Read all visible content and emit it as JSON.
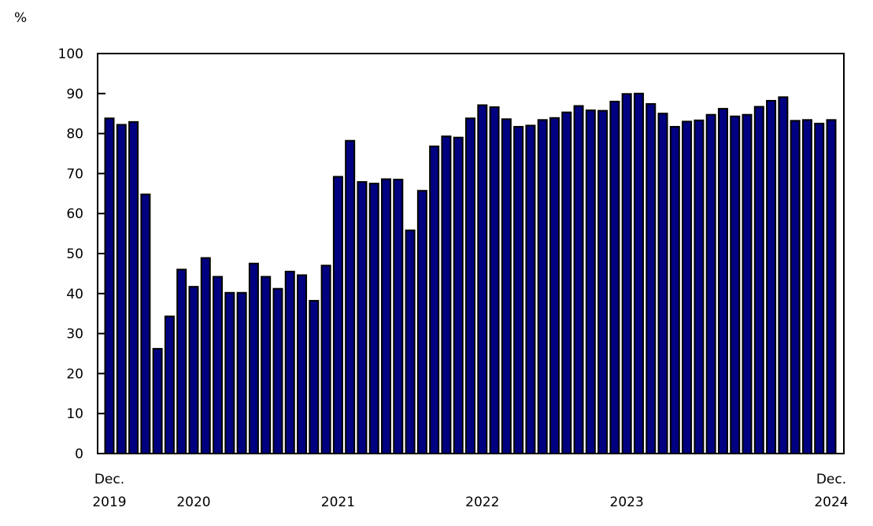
{
  "chart_data": {
    "type": "bar",
    "title": "",
    "ylabel": "%",
    "xlabel": "",
    "ylim": [
      0,
      100
    ],
    "yticks": [
      0,
      10,
      20,
      30,
      40,
      50,
      60,
      70,
      80,
      90,
      100
    ],
    "grid": false,
    "bar_color": "#000080",
    "start": "2019-12",
    "frequency": "monthly",
    "x_tick_labels": [
      {
        "line1": "Dec.",
        "line2": "2019",
        "month": "2019-12"
      },
      {
        "line1": "",
        "line2": "2020",
        "month": "2020-07"
      },
      {
        "line1": "",
        "line2": "2021",
        "month": "2021-07"
      },
      {
        "line1": "",
        "line2": "2022",
        "month": "2022-07"
      },
      {
        "line1": "",
        "line2": "2023",
        "month": "2023-07"
      },
      {
        "line1": "Dec.",
        "line2": "2024",
        "month": "2024-12"
      }
    ],
    "values": [
      83.8,
      82.2,
      82.9,
      64.8,
      26.2,
      34.3,
      46.0,
      41.7,
      48.9,
      44.2,
      40.2,
      40.2,
      47.5,
      44.2,
      41.2,
      45.5,
      44.6,
      38.2,
      47.0,
      69.2,
      78.2,
      67.9,
      67.5,
      68.6,
      68.5,
      55.8,
      65.7,
      76.8,
      79.3,
      79.0,
      83.8,
      87.1,
      86.6,
      83.6,
      81.7,
      82.0,
      83.4,
      83.9,
      85.3,
      86.9,
      85.8,
      85.7,
      88.0,
      89.9,
      90.0,
      87.4,
      85.0,
      81.7,
      83.0,
      83.3,
      84.7,
      86.2,
      84.3,
      84.7,
      86.7,
      88.2,
      89.1,
      83.2,
      83.4,
      82.5,
      83.4
    ]
  }
}
